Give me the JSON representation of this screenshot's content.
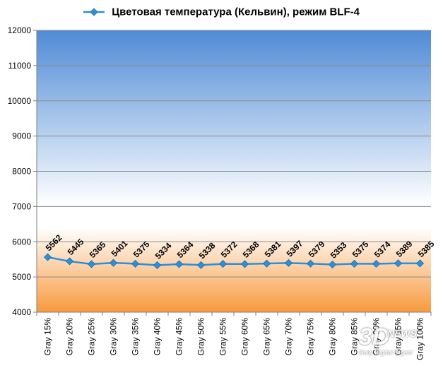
{
  "chart_data": {
    "type": "line",
    "title": "",
    "xlabel": "",
    "ylabel": "",
    "ylim": [
      4000,
      12000
    ],
    "yticks": [
      "4000",
      "5000",
      "6000",
      "7000",
      "8000",
      "9000",
      "10000",
      "11000",
      "12000"
    ],
    "grid": true,
    "legend_position": "top",
    "categories": [
      "Gray 15%",
      "Gray 20%",
      "Gray 25%",
      "Gray 30%",
      "Gray 35%",
      "Gray 40%",
      "Gray 45%",
      "Gray 50%",
      "Gray 55%",
      "Gray 60%",
      "Gray 65%",
      "Gray 70%",
      "Gray 75%",
      "Gray 80%",
      "Gray 85%",
      "Gray 90%",
      "Gray 95%",
      "Gray 100%"
    ],
    "series": [
      {
        "name": "Цветовая температура (Кельвин), режим BLF-4",
        "color": "#2e8fd6",
        "values": [
          5562,
          5445,
          5365,
          5401,
          5375,
          5334,
          5364,
          5338,
          5372,
          5368,
          5381,
          5397,
          5379,
          5353,
          5375,
          5374,
          5389,
          5385
        ],
        "labels": [
          "5562",
          "5445",
          "5365",
          "5401",
          "5375",
          "5334",
          "5364",
          "5338",
          "5372",
          "5368",
          "5381",
          "5397",
          "5379",
          "5353",
          "5375",
          "5374",
          "5389",
          "5385"
        ]
      }
    ],
    "background": {
      "top_color": "#4f8bd6",
      "mid_color": "#ffffff",
      "bottom_color": "#f79a3e"
    }
  },
  "watermark": {
    "logo": "3D",
    "brand": "NEWS",
    "tagline": "Daily Digital Digest"
  }
}
